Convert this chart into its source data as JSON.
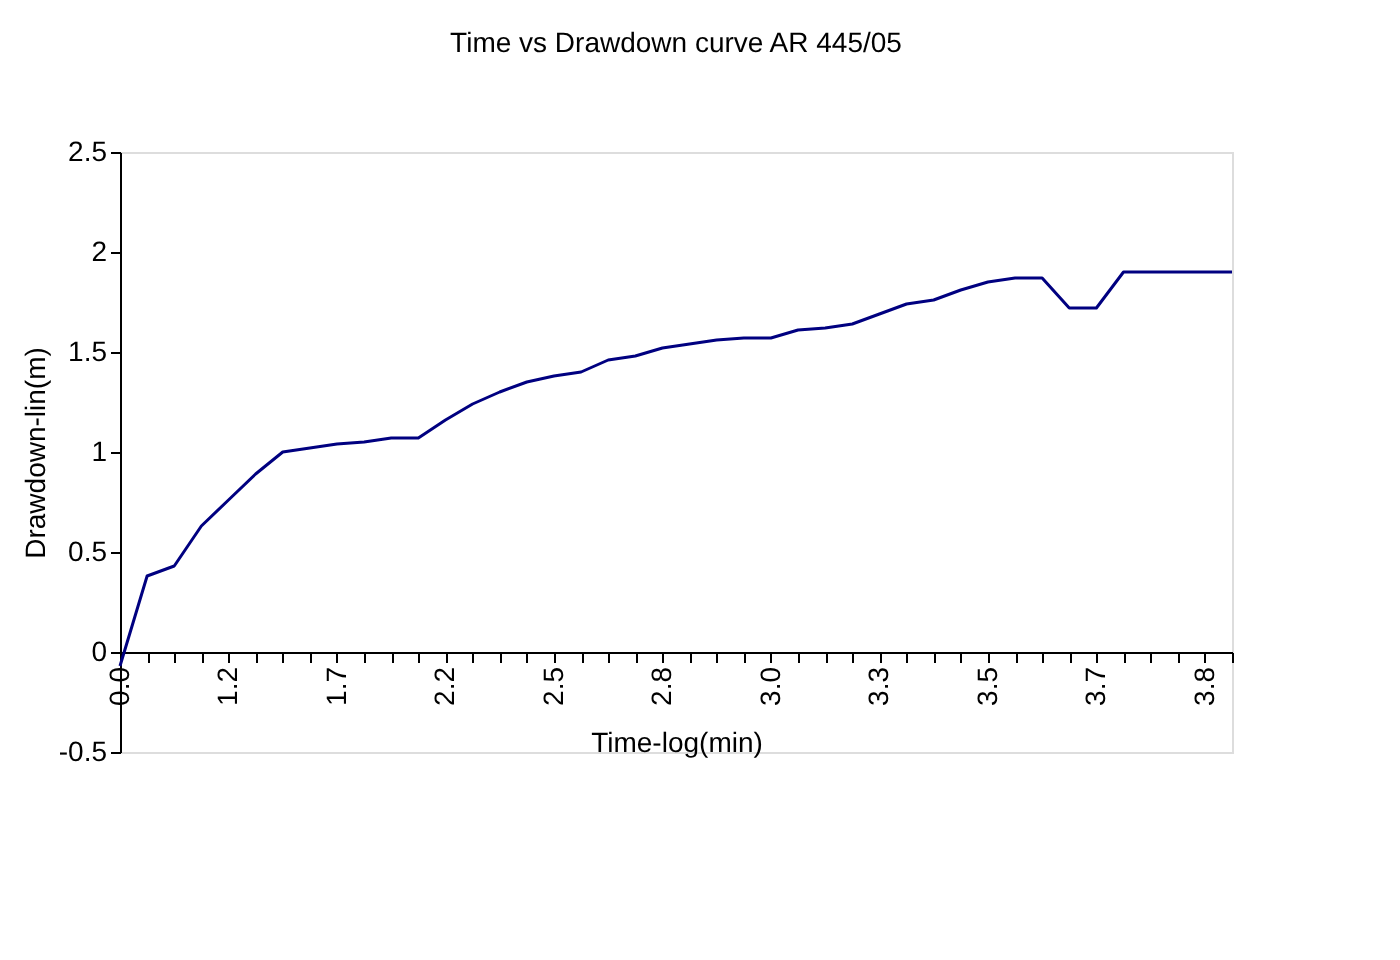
{
  "chart_data": {
    "type": "line",
    "title": "Time vs Drawdown curve AR 445/05",
    "xlabel": "Time-log(min)",
    "ylabel": "Drawdown-lin(m)",
    "categories": [
      "0.0",
      null,
      null,
      null,
      "1.2",
      null,
      null,
      null,
      "1.7",
      null,
      null,
      null,
      "2.2",
      null,
      null,
      null,
      "2.5",
      null,
      null,
      null,
      "2.8",
      null,
      null,
      null,
      "3.0",
      null,
      null,
      null,
      "3.3",
      null,
      null,
      null,
      "3.5",
      null,
      null,
      null,
      "3.7",
      null,
      null,
      null,
      "3.8",
      null
    ],
    "series": [
      {
        "color": "#000080",
        "values": [
          -0.07,
          0.38,
          0.43,
          0.63,
          0.76,
          0.89,
          1.0,
          1.02,
          1.04,
          1.05,
          1.07,
          1.07,
          1.16,
          1.24,
          1.3,
          1.35,
          1.38,
          1.4,
          1.46,
          1.48,
          1.52,
          1.54,
          1.56,
          1.57,
          1.57,
          1.61,
          1.62,
          1.64,
          1.69,
          1.74,
          1.76,
          1.81,
          1.85,
          1.87,
          1.87,
          1.72,
          1.72,
          1.9,
          1.9,
          1.9,
          1.9,
          1.9
        ]
      }
    ],
    "ylim": [
      -0.5,
      2.5
    ],
    "yticks": [
      -0.5,
      0,
      0.5,
      1,
      1.5,
      2,
      2.5
    ],
    "grid": false,
    "marker": "none",
    "line_style": "solid"
  }
}
